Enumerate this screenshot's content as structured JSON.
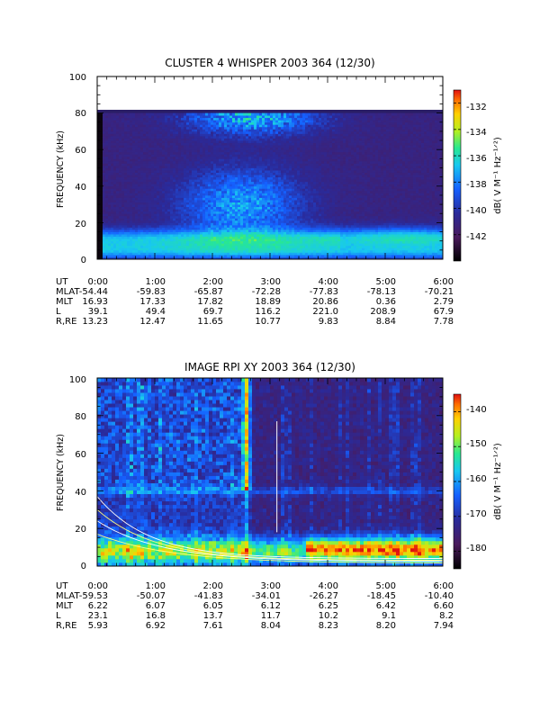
{
  "chart_data": [
    {
      "type": "heatmap",
      "title": "CLUSTER 4 WHISPER 2003 364 (12/30)",
      "ylabel": "FREQUENCY (kHz)",
      "xlabel": "UT",
      "colorbar_label": "dB( V M⁻¹ Hz⁻¹ᐟ²)",
      "colorbar_ticks": [
        -132,
        -134,
        -136,
        -138,
        -140,
        -142
      ],
      "colorbar_range": [
        -144,
        -131
      ],
      "yticks": [
        0,
        20,
        40,
        60,
        80,
        100
      ],
      "ylim": [
        0,
        100
      ],
      "data_ymax": 80,
      "xlim_hours": [
        0,
        6
      ],
      "ephemeris": {
        "rows": [
          "UT",
          "MLAT",
          "MLT",
          "L",
          "R,RE"
        ],
        "values": [
          [
            "0:00",
            "1:00",
            "2:00",
            "3:00",
            "4:00",
            "5:00",
            "6:00"
          ],
          [
            "-54.44",
            "-59.83",
            "-65.87",
            "-72.28",
            "-77.83",
            "-78.13",
            "-70.21"
          ],
          [
            "16.93",
            "17.33",
            "17.82",
            "18.89",
            "20.86",
            "0.36",
            "2.79"
          ],
          [
            "39.1",
            "49.4",
            "69.7",
            "116.2",
            "221.0",
            "208.9",
            "67.9"
          ],
          [
            "13.23",
            "12.47",
            "11.65",
            "10.77",
            "9.83",
            "8.84",
            "7.78"
          ]
        ]
      }
    },
    {
      "type": "heatmap",
      "title": "IMAGE RPI XY 2003 364 (12/30)",
      "ylabel": "FREQUENCY (kHz)",
      "xlabel": "UT",
      "colorbar_label": "dB( V M⁻¹ Hz⁻¹ᐟ²)",
      "colorbar_ticks": [
        -140,
        -150,
        -160,
        -170,
        -180
      ],
      "colorbar_range": [
        -185,
        -135
      ],
      "yticks": [
        0,
        20,
        40,
        60,
        80,
        100
      ],
      "ylim": [
        0,
        100
      ],
      "xlim_hours": [
        0,
        6
      ],
      "ephemeris": {
        "rows": [
          "UT",
          "MLAT",
          "MLT",
          "L",
          "R,RE"
        ],
        "values": [
          [
            "0:00",
            "1:00",
            "2:00",
            "3:00",
            "4:00",
            "5:00",
            "6:00"
          ],
          [
            "-59.53",
            "-50.07",
            "-41.83",
            "-34.01",
            "-26.27",
            "-18.45",
            "-10.40"
          ],
          [
            "6.22",
            "6.07",
            "6.05",
            "6.12",
            "6.25",
            "6.42",
            "6.60"
          ],
          [
            "23.1",
            "16.8",
            "13.7",
            "11.7",
            "10.2",
            "9.1",
            "8.2"
          ],
          [
            "5.93",
            "6.92",
            "7.61",
            "8.04",
            "8.23",
            "8.20",
            "7.94"
          ]
        ]
      }
    }
  ]
}
